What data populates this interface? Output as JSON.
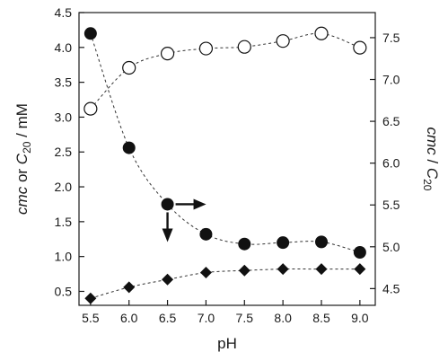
{
  "chart_data": {
    "type": "scatter",
    "title": "",
    "xlabel": "pH",
    "ylabel_left": {
      "italic": "cmc",
      "plain1": " or ",
      "c": "C",
      "sub": "20",
      "plain2": " / mM"
    },
    "ylabel_right": {
      "italic1": "cmc",
      "plain": " / ",
      "italic2": "C",
      "sub": "20"
    },
    "xlim": [
      5.35,
      9.2
    ],
    "ylim_left": [
      0.3,
      4.5
    ],
    "ylim_right": [
      4.3,
      7.8
    ],
    "x_ticks": [
      5.5,
      6.0,
      6.5,
      7.0,
      7.5,
      8.0,
      8.5,
      9.0
    ],
    "x_tick_labels": [
      "5.5",
      "6.0",
      "6.5",
      "7.0",
      "7.5",
      "8.0",
      "8.5",
      "9.0"
    ],
    "y_left_ticks": [
      0.5,
      1.0,
      1.5,
      2.0,
      2.5,
      3.0,
      3.5,
      4.0,
      4.5
    ],
    "y_left_tick_labels": [
      "0.5",
      "1.0",
      "1.5",
      "2.0",
      "2.5",
      "3.0",
      "3.5",
      "4.0",
      "4.5"
    ],
    "y_right_ticks": [
      4.5,
      5.0,
      5.5,
      6.0,
      6.5,
      7.0,
      7.5
    ],
    "y_right_tick_labels": [
      "4.5",
      "5.0",
      "5.5",
      "6.0",
      "6.5",
      "7.0",
      "7.5"
    ],
    "grid": false,
    "legend": "none",
    "series": [
      {
        "marker": "filled-circle",
        "axis": "left",
        "x": [
          5.5,
          6.0,
          6.5,
          7.0,
          7.5,
          8.0,
          8.5,
          9.0
        ],
        "y": [
          4.2,
          2.56,
          1.75,
          1.32,
          1.18,
          1.2,
          1.21,
          1.06
        ],
        "color": "#111111"
      },
      {
        "marker": "filled-diamond",
        "axis": "left",
        "x": [
          5.5,
          6.0,
          6.5,
          7.0,
          7.5,
          8.0,
          8.5,
          9.0
        ],
        "y": [
          0.4,
          0.56,
          0.67,
          0.77,
          0.8,
          0.82,
          0.82,
          0.82
        ],
        "color": "#111111"
      },
      {
        "marker": "open-circle",
        "axis": "right",
        "x": [
          5.5,
          6.0,
          6.5,
          7.0,
          7.5,
          8.0,
          8.5,
          9.0
        ],
        "y": [
          6.65,
          7.14,
          7.31,
          7.37,
          7.39,
          7.46,
          7.55,
          7.38
        ],
        "color": "#111111"
      }
    ],
    "annotations": [
      {
        "type": "arrow",
        "from_series": 0,
        "from_index": 2,
        "direction": "right",
        "meaning": "right axis"
      },
      {
        "type": "arrow",
        "from_series": 0,
        "from_index": 2,
        "direction": "down",
        "meaning": "left axis"
      }
    ]
  }
}
